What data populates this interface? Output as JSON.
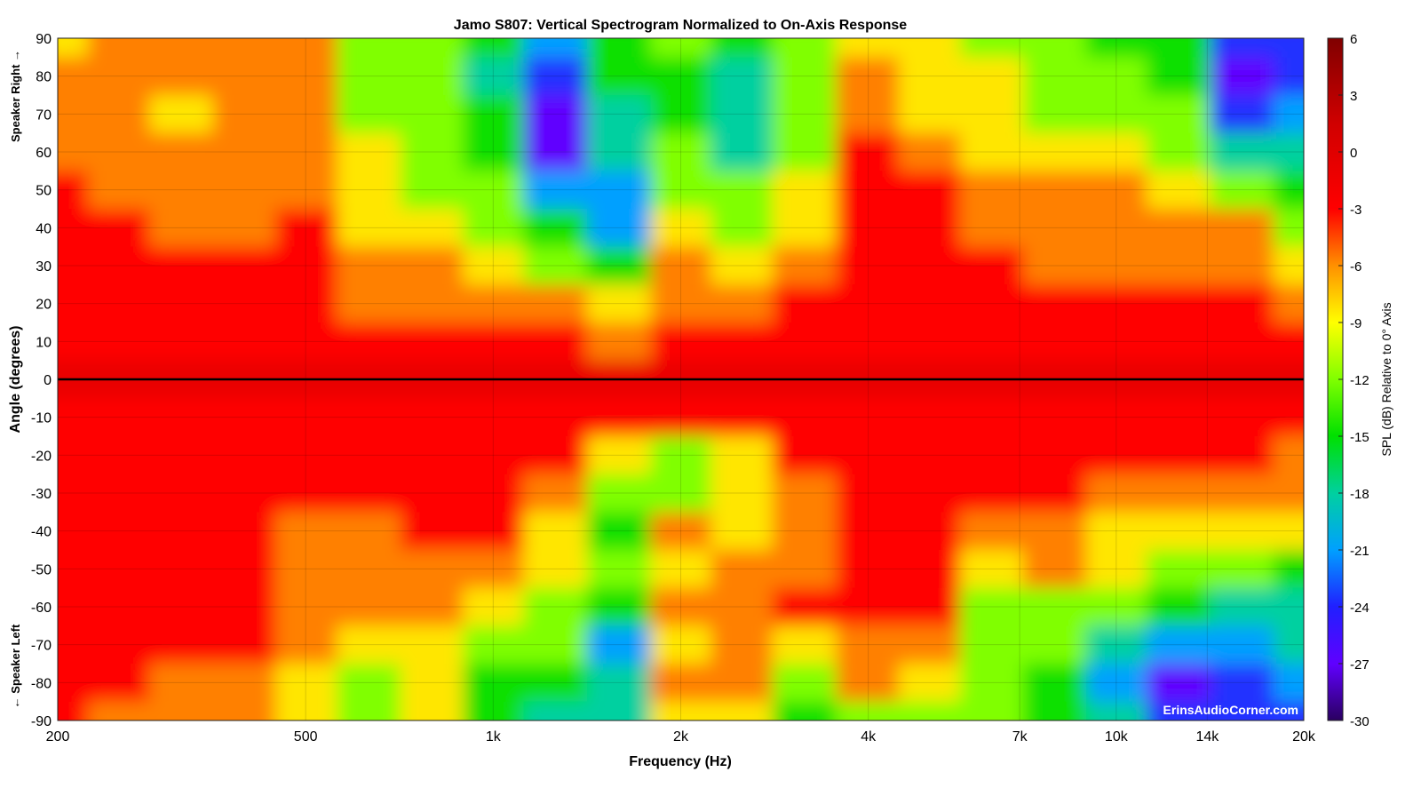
{
  "chart_data": {
    "type": "heatmap",
    "title": "Jamo S807: Vertical Spectrogram Normalized to On-Axis Response",
    "xlabel": "Frequency (Hz)",
    "ylabel": "Angle (degrees)",
    "ylabel_top": "Speaker Right →",
    "ylabel_bottom": "← Speaker Left",
    "colorbar_label": "SPL (dB) Relative to 0° Axis",
    "watermark": "ErinsAudioCorner.com",
    "xscale": "log",
    "xlim": [
      200,
      20000
    ],
    "ylim": [
      -90,
      90
    ],
    "clim": [
      -30,
      6
    ],
    "x_ticks": [
      200,
      500,
      1000,
      2000,
      4000,
      7000,
      10000,
      14000,
      20000
    ],
    "x_tick_labels": [
      "200",
      "500",
      "1k",
      "2k",
      "4k",
      "7k",
      "10k",
      "14k",
      "20k"
    ],
    "y_ticks": [
      90,
      80,
      70,
      60,
      50,
      40,
      30,
      20,
      10,
      0,
      -10,
      -20,
      -30,
      -40,
      -50,
      -60,
      -70,
      -80,
      -90
    ],
    "y_tick_labels": [
      "90",
      "80",
      "70",
      "60",
      "50",
      "40",
      "30",
      "20",
      "10",
      "0",
      "-10",
      "-20",
      "-30",
      "-40",
      "-50",
      "-60",
      "-70",
      "-80",
      "-90"
    ],
    "colorbar_ticks": [
      6,
      3,
      0,
      -3,
      -6,
      -9,
      -12,
      -15,
      -18,
      -21,
      -24,
      -27,
      -30
    ],
    "colorbar_tick_labels": [
      "6",
      "3",
      "0",
      "-3",
      "-6",
      "-9",
      "-12",
      "-15",
      "-18",
      "-21",
      "-24",
      "-27",
      "-30"
    ],
    "frequencies": [
      200,
      250,
      315,
      400,
      500,
      630,
      800,
      1000,
      1250,
      1600,
      2000,
      2500,
      3150,
      4000,
      5000,
      6300,
      8000,
      10000,
      12500,
      16000,
      20000
    ],
    "angles": [
      90,
      80,
      70,
      60,
      50,
      40,
      30,
      20,
      10,
      0,
      -10,
      -20,
      -30,
      -40,
      -50,
      -60,
      -70,
      -80,
      -90
    ],
    "values": [
      [
        -9,
        -6,
        -6,
        -5,
        -6,
        -10,
        -12,
        -15,
        -20,
        -14,
        -12,
        -14,
        -10,
        -9,
        -9,
        -11,
        -12,
        -13,
        -14,
        -24,
        -22
      ],
      [
        -6,
        -6,
        -6,
        -6,
        -6,
        -10,
        -12,
        -16,
        -24,
        -15,
        -14,
        -18,
        -11,
        -6,
        -8,
        -9,
        -11,
        -12,
        -13,
        -26,
        -22
      ],
      [
        -5,
        -6,
        -7,
        -6,
        -6,
        -10,
        -12,
        -15,
        -27,
        -18,
        -14,
        -18,
        -12,
        -6,
        -7,
        -9,
        -10,
        -11,
        -12,
        -22,
        -20
      ],
      [
        -4,
        -5,
        -6,
        -6,
        -6,
        -9,
        -11,
        -14,
        -25,
        -18,
        -12,
        -16,
        -11,
        -3,
        -5,
        -8,
        -9,
        -9,
        -10,
        -16,
        -18
      ],
      [
        -3,
        -4,
        -5,
        -5,
        -4,
        -8,
        -10,
        -12,
        -20,
        -20,
        -10,
        -12,
        -9,
        -2,
        -3,
        -6,
        -6,
        -6,
        -7,
        -10,
        -15
      ],
      [
        -3,
        -3,
        -5,
        -4,
        -3,
        -7,
        -8,
        -10,
        -14,
        -20,
        -8,
        -10,
        -8,
        -1,
        -2,
        -4,
        -5,
        -5,
        -5,
        -6,
        -10
      ],
      [
        -2,
        -3,
        -3,
        -3,
        -2,
        -6,
        -6,
        -8,
        -10,
        -14,
        -6,
        -7,
        -6,
        -1,
        -2,
        -3,
        -4,
        -4,
        -4,
        -4,
        -7
      ],
      [
        -1,
        -2,
        -2,
        -2,
        -1,
        -4,
        -4,
        -6,
        -6,
        -7,
        -6,
        -6,
        -3,
        -1,
        -1,
        -2,
        -3,
        -2,
        -2,
        -2,
        -4
      ],
      [
        -1,
        -1,
        -1,
        -1,
        -1,
        -2,
        -2,
        -3,
        -3,
        -4,
        -3,
        -3,
        -2,
        -1,
        -1,
        -1,
        -2,
        -2,
        -1,
        -1,
        -2
      ],
      [
        0,
        0,
        0,
        0,
        0,
        0,
        0,
        0,
        0,
        0,
        0,
        0,
        0,
        0,
        0,
        0,
        0,
        0,
        0,
        0,
        0
      ],
      [
        -1,
        -1,
        -1,
        -1,
        -1,
        -1,
        -1,
        -1,
        -1,
        -2,
        -2,
        -2,
        -1,
        -1,
        -1,
        -1,
        -1,
        -1,
        -1,
        -2,
        -2
      ],
      [
        -1,
        -1,
        -1,
        -1,
        -1,
        -1,
        -1,
        -2,
        -3,
        -8,
        -10,
        -9,
        -2,
        -1,
        -1,
        -1,
        -2,
        -3,
        -3,
        -3,
        -4
      ],
      [
        -1,
        -1,
        -1,
        -1,
        -3,
        -3,
        -2,
        -2,
        -5,
        -12,
        -10,
        -8,
        -4,
        -1,
        -1,
        -2,
        -3,
        -4,
        -5,
        -5,
        -6
      ],
      [
        -1,
        -1,
        -1,
        -1,
        -4,
        -5,
        -3,
        -3,
        -8,
        -13,
        -6,
        -9,
        -6,
        -2,
        -2,
        -4,
        -4,
        -7,
        -8,
        -8,
        -9
      ],
      [
        -1,
        -1,
        -1,
        -1,
        -5,
        -6,
        -5,
        -4,
        -9,
        -10,
        -8,
        -6,
        -4,
        -3,
        -3,
        -8,
        -6,
        -9,
        -12,
        -12,
        -13
      ],
      [
        -1,
        -1,
        -1,
        -1,
        -5,
        -6,
        -6,
        -7,
        -12,
        -14,
        -6,
        -4,
        -3,
        -3,
        -3,
        -10,
        -10,
        -12,
        -15,
        -16,
        -16
      ],
      [
        -1,
        -2,
        -2,
        -2,
        -6,
        -8,
        -9,
        -12,
        -12,
        -20,
        -7,
        -4,
        -8,
        -4,
        -5,
        -12,
        -12,
        -18,
        -20,
        -20,
        -18
      ],
      [
        -2,
        -3,
        -4,
        -4,
        -7,
        -10,
        -8,
        -13,
        -14,
        -16,
        -5,
        -5,
        -10,
        -5,
        -8,
        -10,
        -14,
        -20,
        -25,
        -24,
        -20
      ],
      [
        -3,
        -4,
        -6,
        -6,
        -8,
        -12,
        -9,
        -15,
        -16,
        -18,
        -8,
        -8,
        -14,
        -10,
        -10,
        -12,
        -14,
        -18,
        -22,
        -22,
        -22
      ]
    ]
  }
}
